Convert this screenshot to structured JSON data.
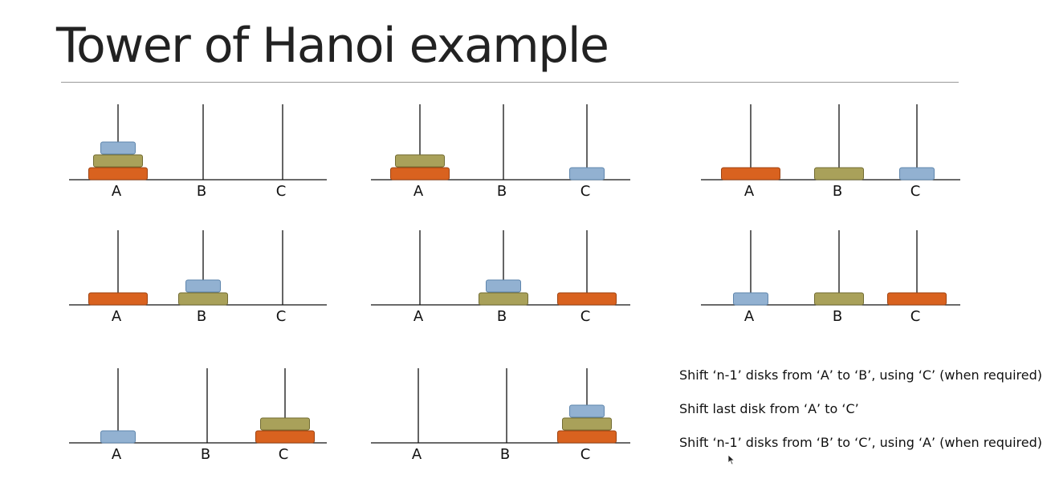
{
  "title": "Tower of Hanoi example",
  "colors": {
    "large": "#d9621f",
    "large_border": "#9e4312",
    "medium": "#a9a15a",
    "medium_border": "#726c33",
    "small": "#92b1d1",
    "small_border": "#5f86ad",
    "line": "#111111"
  },
  "peg_labels": [
    "A",
    "B",
    "C"
  ],
  "disk_names": [
    "small",
    "medium",
    "large"
  ],
  "states": [
    {
      "pegs": [
        [
          "large",
          "medium",
          "small"
        ],
        [],
        []
      ]
    },
    {
      "pegs": [
        [
          "large",
          "medium"
        ],
        [],
        [
          "small"
        ]
      ]
    },
    {
      "pegs": [
        [
          "large"
        ],
        [
          "medium"
        ],
        [
          "small"
        ]
      ]
    },
    {
      "pegs": [
        [
          "large"
        ],
        [
          "medium",
          "small"
        ],
        []
      ]
    },
    {
      "pegs": [
        [],
        [
          "medium",
          "small"
        ],
        [
          "large"
        ]
      ]
    },
    {
      "pegs": [
        [
          "small"
        ],
        [
          "medium"
        ],
        [
          "large"
        ]
      ]
    },
    {
      "pegs": [
        [
          "small"
        ],
        [],
        [
          "large",
          "medium"
        ]
      ]
    },
    {
      "pegs": [
        [],
        [],
        [
          "large",
          "medium",
          "small"
        ]
      ]
    }
  ],
  "steps": [
    "Shift ‘n-1’ disks from ‘A’ to ‘B’, using ‘C’ (when required)",
    "Shift last disk from ‘A’ to ‘C’",
    "Shift ‘n-1’ disks from ‘B’ to ‘C’, using ‘A’ (when required)"
  ]
}
